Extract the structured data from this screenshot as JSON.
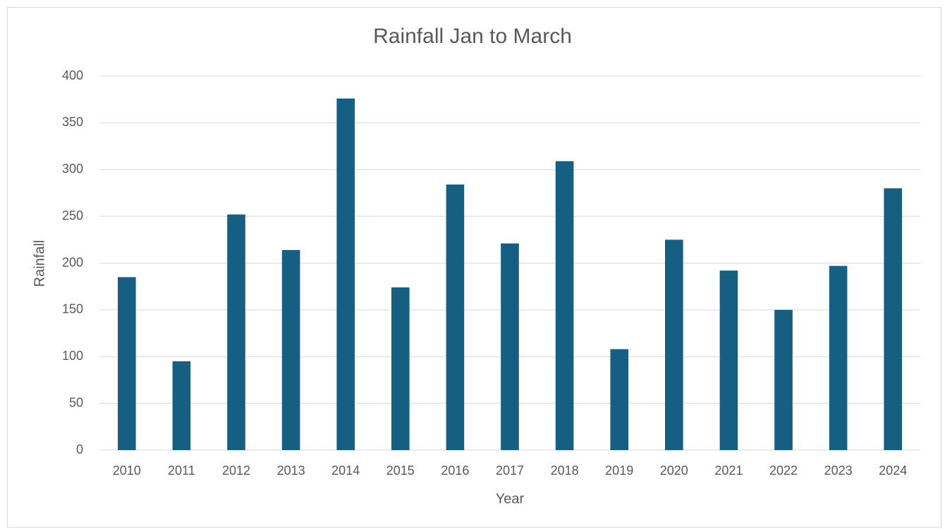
{
  "chart_data": {
    "type": "bar",
    "title": "Rainfall Jan to March",
    "xlabel": "Year",
    "ylabel": "Rainfall",
    "categories": [
      "2010",
      "2011",
      "2012",
      "2013",
      "2014",
      "2015",
      "2016",
      "2017",
      "2018",
      "2019",
      "2020",
      "2021",
      "2022",
      "2023",
      "2024"
    ],
    "values": [
      185,
      95,
      252,
      214,
      376,
      174,
      284,
      221,
      309,
      108,
      225,
      192,
      150,
      197,
      280
    ],
    "color": "#156082",
    "ylim": [
      0,
      400
    ],
    "yticks": [
      0,
      50,
      100,
      150,
      200,
      250,
      300,
      350,
      400
    ],
    "grid": true
  }
}
